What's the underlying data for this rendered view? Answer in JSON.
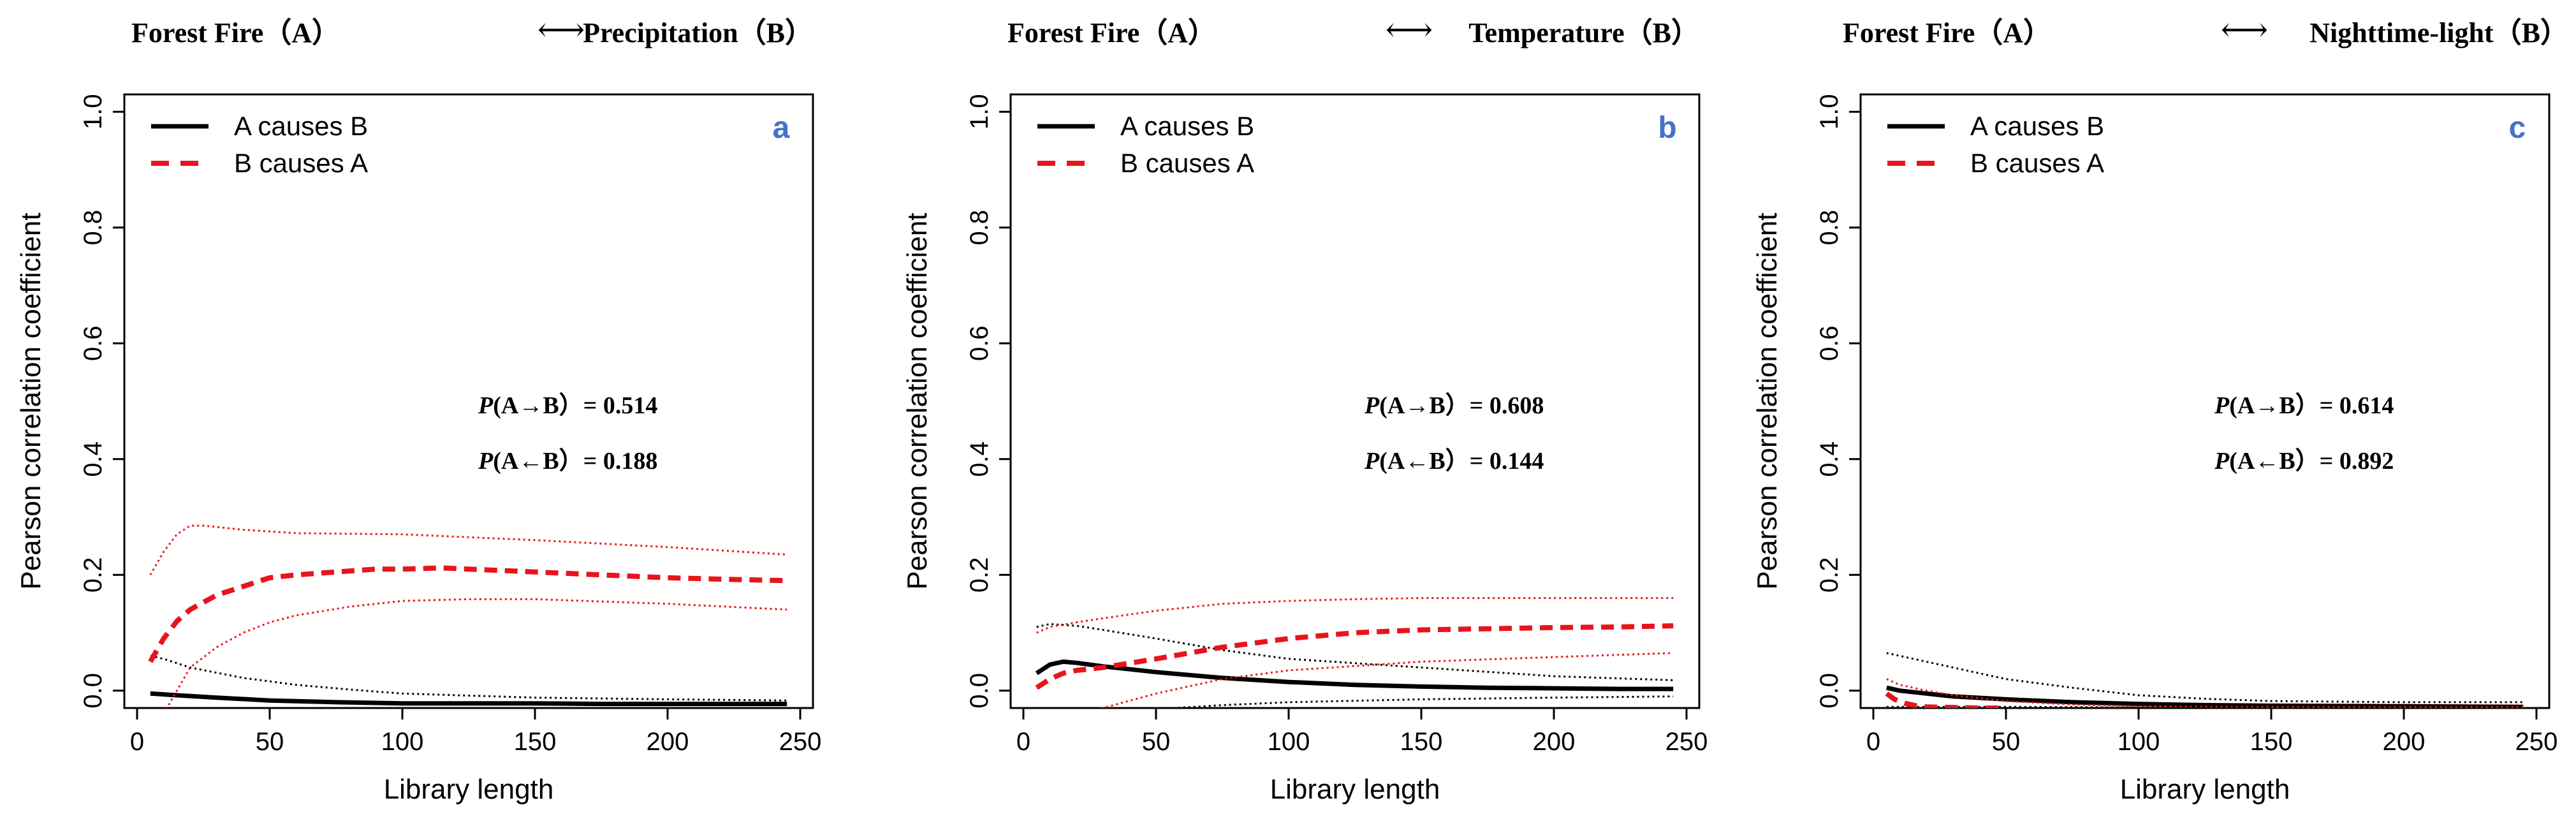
{
  "colors": {
    "a_causes_b": "#000000",
    "b_causes_a": "#e8141c",
    "panel_letter": "#4472c4"
  },
  "chart_data": [
    {
      "type": "line",
      "panel_letter": "a",
      "header": {
        "left": "Forest Fire（A）",
        "arrow": "⟷",
        "right": "Precipitation（B）"
      },
      "xlabel": "Library length",
      "ylabel": "Pearson correlation coefficient",
      "xlim": [
        0,
        250
      ],
      "ylim": [
        -0.03,
        1.03
      ],
      "xticks": [
        "0",
        "50",
        "100",
        "150",
        "200",
        "250"
      ],
      "yticks": [
        "0.0",
        "0.2",
        "0.4",
        "0.6",
        "0.8",
        "1.0"
      ],
      "legend": {
        "position": "top-left",
        "entries": [
          "A causes B",
          "B causes A"
        ]
      },
      "annotations": [
        {
          "italic": "P",
          "rest": "(A→B）= 0.514"
        },
        {
          "italic": "P",
          "rest": "(A←B）= 0.188"
        }
      ],
      "series": [
        {
          "name": "A causes B",
          "style": "solid",
          "x": [
            5,
            15,
            30,
            50,
            75,
            100,
            125,
            150,
            175,
            200,
            225,
            245
          ],
          "y": [
            -0.005,
            -0.008,
            -0.012,
            -0.017,
            -0.02,
            -0.022,
            -0.022,
            -0.022,
            -0.023,
            -0.023,
            -0.023,
            -0.023
          ]
        },
        {
          "name": "A causes B upper",
          "style": "dotted",
          "x": [
            5,
            10,
            20,
            40,
            60,
            80,
            100,
            150,
            200,
            245
          ],
          "y": [
            0.06,
            0.055,
            0.04,
            0.022,
            0.01,
            0.002,
            -0.005,
            -0.012,
            -0.015,
            -0.017
          ]
        },
        {
          "name": "A causes B lower",
          "style": "dotted",
          "x": [
            5,
            30,
            60,
            100,
            150,
            200,
            245
          ],
          "y": [
            -0.035,
            -0.034,
            -0.033,
            -0.032,
            -0.031,
            -0.03,
            -0.03
          ]
        },
        {
          "name": "B causes A",
          "style": "dashed",
          "x": [
            5,
            10,
            15,
            20,
            30,
            40,
            50,
            60,
            75,
            90,
            100,
            115,
            125,
            150,
            175,
            200,
            225,
            245
          ],
          "y": [
            0.05,
            0.09,
            0.12,
            0.14,
            0.165,
            0.18,
            0.195,
            0.2,
            0.205,
            0.21,
            0.21,
            0.212,
            0.21,
            0.205,
            0.2,
            0.195,
            0.192,
            0.19
          ]
        },
        {
          "name": "B causes A upper",
          "style": "dotted",
          "x": [
            5,
            10,
            15,
            20,
            25,
            40,
            60,
            100,
            150,
            200,
            245
          ],
          "y": [
            0.2,
            0.24,
            0.27,
            0.285,
            0.285,
            0.278,
            0.272,
            0.27,
            0.26,
            0.248,
            0.235
          ]
        },
        {
          "name": "B causes A lower",
          "style": "dotted",
          "x": [
            10,
            15,
            20,
            30,
            40,
            50,
            60,
            80,
            100,
            125,
            150,
            200,
            245
          ],
          "y": [
            -0.04,
            0.0,
            0.04,
            0.075,
            0.1,
            0.118,
            0.13,
            0.145,
            0.155,
            0.158,
            0.158,
            0.15,
            0.14
          ]
        }
      ]
    },
    {
      "type": "line",
      "panel_letter": "b",
      "header": {
        "left": "Forest Fire（A）",
        "arrow": "⟷",
        "right": "Temperature（B）"
      },
      "xlabel": "Library length",
      "ylabel": "Pearson correlation coefficient",
      "xlim": [
        0,
        250
      ],
      "ylim": [
        -0.03,
        1.03
      ],
      "xticks": [
        "0",
        "50",
        "100",
        "150",
        "200",
        "250"
      ],
      "yticks": [
        "0.0",
        "0.2",
        "0.4",
        "0.6",
        "0.8",
        "1.0"
      ],
      "legend": {
        "position": "top-left",
        "entries": [
          "A causes B",
          "B causes A"
        ]
      },
      "annotations": [
        {
          "italic": "P",
          "rest": "(A→B）= 0.608"
        },
        {
          "italic": "P",
          "rest": "(A←B）= 0.144"
        }
      ],
      "series": [
        {
          "name": "A causes B",
          "style": "solid",
          "x": [
            5,
            10,
            15,
            20,
            30,
            50,
            75,
            100,
            125,
            150,
            175,
            200,
            225,
            245
          ],
          "y": [
            0.03,
            0.045,
            0.05,
            0.048,
            0.042,
            0.032,
            0.022,
            0.015,
            0.01,
            0.007,
            0.005,
            0.004,
            0.003,
            0.003
          ]
        },
        {
          "name": "A causes B upper",
          "style": "dotted",
          "x": [
            5,
            10,
            20,
            30,
            50,
            75,
            100,
            150,
            200,
            245
          ],
          "y": [
            0.11,
            0.115,
            0.112,
            0.105,
            0.09,
            0.07,
            0.055,
            0.04,
            0.025,
            0.018
          ]
        },
        {
          "name": "A causes B lower",
          "style": "dotted",
          "x": [
            5,
            15,
            30,
            50,
            75,
            100,
            150,
            200,
            245
          ],
          "y": [
            -0.06,
            -0.05,
            -0.04,
            -0.032,
            -0.025,
            -0.02,
            -0.015,
            -0.012,
            -0.01
          ]
        },
        {
          "name": "B causes A",
          "style": "dashed",
          "x": [
            5,
            10,
            15,
            20,
            30,
            50,
            75,
            100,
            125,
            150,
            175,
            200,
            225,
            245
          ],
          "y": [
            0.005,
            0.02,
            0.03,
            0.035,
            0.04,
            0.055,
            0.075,
            0.09,
            0.1,
            0.105,
            0.107,
            0.109,
            0.11,
            0.112
          ]
        },
        {
          "name": "B causes A upper",
          "style": "dotted",
          "x": [
            5,
            10,
            20,
            30,
            50,
            75,
            100,
            125,
            150,
            200,
            245
          ],
          "y": [
            0.1,
            0.11,
            0.118,
            0.125,
            0.138,
            0.15,
            0.155,
            0.158,
            0.16,
            0.16,
            0.16
          ]
        },
        {
          "name": "B causes A lower",
          "style": "dotted",
          "x": [
            5,
            15,
            30,
            50,
            75,
            100,
            150,
            200,
            245
          ],
          "y": [
            -0.08,
            -0.05,
            -0.03,
            -0.005,
            0.02,
            0.035,
            0.05,
            0.058,
            0.065
          ]
        }
      ]
    },
    {
      "type": "line",
      "panel_letter": "c",
      "header": {
        "left": "Forest Fire（A）",
        "arrow": "⟷",
        "right": "Nighttime-light（B）"
      },
      "xlabel": "Library length",
      "ylabel": "Pearson correlation coefficient",
      "xlim": [
        0,
        250
      ],
      "ylim": [
        -0.03,
        1.03
      ],
      "xticks": [
        "0",
        "50",
        "100",
        "150",
        "200",
        "250"
      ],
      "yticks": [
        "0.0",
        "0.2",
        "0.4",
        "0.6",
        "0.8",
        "1.0"
      ],
      "legend": {
        "position": "top-left",
        "entries": [
          "A causes B",
          "B causes A"
        ]
      },
      "annotations": [
        {
          "italic": "P",
          "rest": "(A→B）= 0.614"
        },
        {
          "italic": "P",
          "rest": "(A←B）= 0.892"
        }
      ],
      "series": [
        {
          "name": "A causes B",
          "style": "solid",
          "x": [
            5,
            10,
            20,
            30,
            50,
            75,
            100,
            125,
            150,
            200,
            245
          ],
          "y": [
            0.005,
            0.0,
            -0.005,
            -0.01,
            -0.015,
            -0.02,
            -0.023,
            -0.025,
            -0.026,
            -0.027,
            -0.028
          ]
        },
        {
          "name": "A causes B upper",
          "style": "dotted",
          "x": [
            5,
            10,
            20,
            30,
            50,
            75,
            100,
            125,
            150,
            200,
            245
          ],
          "y": [
            0.065,
            0.06,
            0.05,
            0.04,
            0.02,
            0.005,
            -0.008,
            -0.014,
            -0.018,
            -0.02,
            -0.02
          ]
        },
        {
          "name": "A causes B lower",
          "style": "dotted",
          "x": [
            5,
            20,
            50,
            100,
            150,
            200,
            245
          ],
          "y": [
            -0.028,
            -0.028,
            -0.028,
            -0.029,
            -0.029,
            -0.029,
            -0.029
          ]
        },
        {
          "name": "B causes A",
          "style": "dashed",
          "x": [
            5,
            8,
            12,
            16,
            20,
            30,
            40,
            50
          ],
          "y": [
            -0.005,
            -0.015,
            -0.022,
            -0.026,
            -0.028,
            -0.029,
            -0.03,
            -0.03
          ]
        },
        {
          "name": "B causes A upper",
          "style": "dotted",
          "x": [
            5,
            10,
            20,
            30,
            50,
            75,
            100,
            150,
            245
          ],
          "y": [
            0.02,
            0.01,
            0.0,
            -0.008,
            -0.018,
            -0.024,
            -0.027,
            -0.028,
            -0.028
          ]
        }
      ]
    }
  ]
}
